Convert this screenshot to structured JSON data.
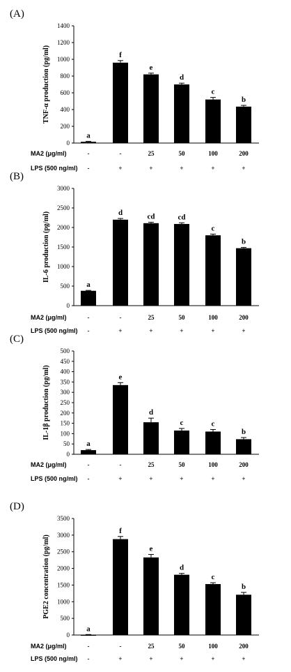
{
  "colors": {
    "bar": "#000000",
    "axis": "#000000",
    "background": "#ffffff"
  },
  "conditions": {
    "ma2": {
      "label": "MA2 (μg/ml)",
      "values": [
        "-",
        "-",
        "25",
        "50",
        "100",
        "200"
      ]
    },
    "lps": {
      "label": "LPS (500 ng/ml)",
      "values": [
        "-",
        "+",
        "+",
        "+",
        "+",
        "+"
      ]
    }
  },
  "chart_data": [
    {
      "type": "bar",
      "panel": "(A)",
      "ylabel": "TNF-α production (pg/ml)",
      "ylim": [
        0,
        1400
      ],
      "yticks": [
        0,
        200,
        400,
        600,
        800,
        1000,
        1200,
        1400
      ],
      "values": [
        15,
        960,
        820,
        700,
        520,
        435
      ],
      "errors": [
        5,
        25,
        15,
        15,
        25,
        15
      ],
      "letters": [
        "a",
        "f",
        "e",
        "d",
        "c",
        "b"
      ]
    },
    {
      "type": "bar",
      "panel": "(B)",
      "ylabel": "IL-6 production (pg/ml)",
      "ylim": [
        0,
        3000
      ],
      "yticks": [
        0,
        500,
        1000,
        1500,
        2000,
        2500,
        3000
      ],
      "values": [
        380,
        2200,
        2110,
        2090,
        1800,
        1470
      ],
      "errors": [
        10,
        30,
        25,
        30,
        30,
        20
      ],
      "letters": [
        "a",
        "d",
        "cd",
        "cd",
        "c",
        "b"
      ]
    },
    {
      "type": "bar",
      "panel": "(C)",
      "ylabel": "IL-1β production (pg/ml)",
      "ylim": [
        0,
        500
      ],
      "yticks": [
        0,
        50,
        100,
        150,
        200,
        250,
        300,
        350,
        400,
        450,
        500
      ],
      "values": [
        20,
        335,
        155,
        115,
        110,
        73
      ],
      "errors": [
        3,
        12,
        20,
        10,
        10,
        8
      ],
      "letters": [
        "a",
        "e",
        "d",
        "c",
        "c",
        "b"
      ]
    },
    {
      "type": "bar",
      "panel": "(D)",
      "ylabel": "PGE2 concentration (pg/ml)",
      "ylim": [
        0,
        3500
      ],
      "yticks": [
        0,
        500,
        1000,
        1500,
        2000,
        2500,
        3000,
        3500
      ],
      "values": [
        10,
        2880,
        2330,
        1810,
        1530,
        1210
      ],
      "errors": [
        5,
        80,
        90,
        40,
        40,
        70
      ],
      "letters": [
        "a",
        "f",
        "e",
        "d",
        "c",
        "b"
      ]
    }
  ]
}
